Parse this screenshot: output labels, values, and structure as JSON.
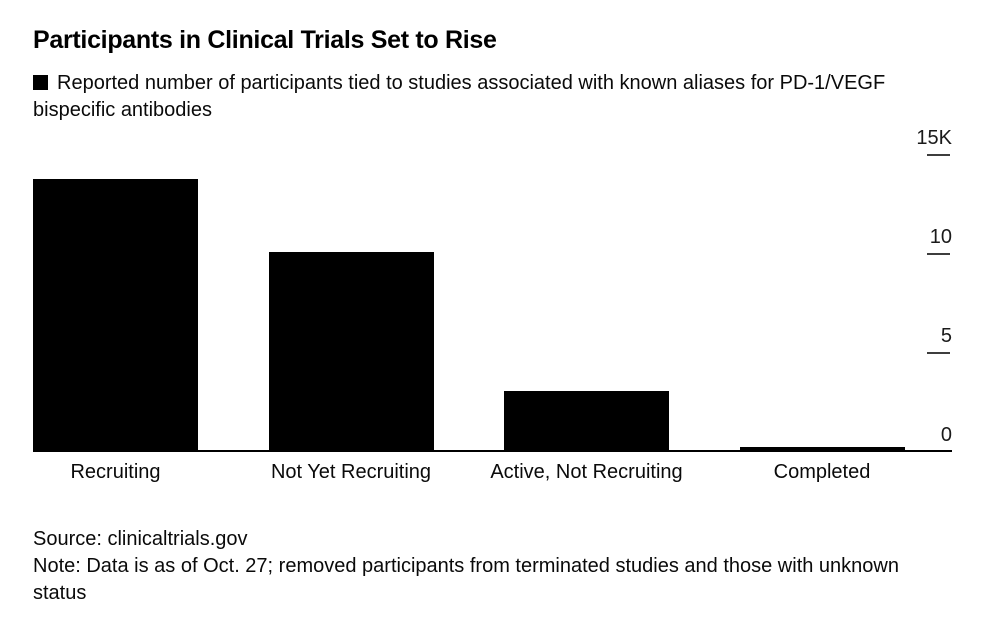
{
  "title": "Participants in Clinical Trials Set to Rise",
  "legend": {
    "swatch_color": "#000000",
    "label": "Reported number of participants tied to studies associated with known aliases for PD-1/VEGF bispecific antibodies"
  },
  "chart_data": {
    "type": "bar",
    "title": "Participants in Clinical Trials Set to Rise",
    "subtitle": "Reported number of participants tied to studies associated with known aliases for PD-1/VEGF bispecific antibodies",
    "categories": [
      "Recruiting",
      "Not Yet Recruiting",
      "Active, Not Recruiting",
      "Completed"
    ],
    "values": [
      13.8,
      10.1,
      3.1,
      0.25
    ],
    "unit": "thousands of participants",
    "bar_color": "#000000",
    "ylim": [
      0,
      15
    ],
    "yticks": [
      {
        "label": "15K",
        "value": 15
      },
      {
        "label": "10",
        "value": 10
      },
      {
        "label": "5",
        "value": 5
      },
      {
        "label": "0",
        "value": 0
      }
    ],
    "grid": false,
    "legend_position": "top-left",
    "value_axis_side": "right"
  },
  "footer": {
    "source": "Source: clinicaltrials.gov",
    "note": "Note: Data is as of Oct. 27; removed participants from terminated studies and those with unknown status"
  }
}
